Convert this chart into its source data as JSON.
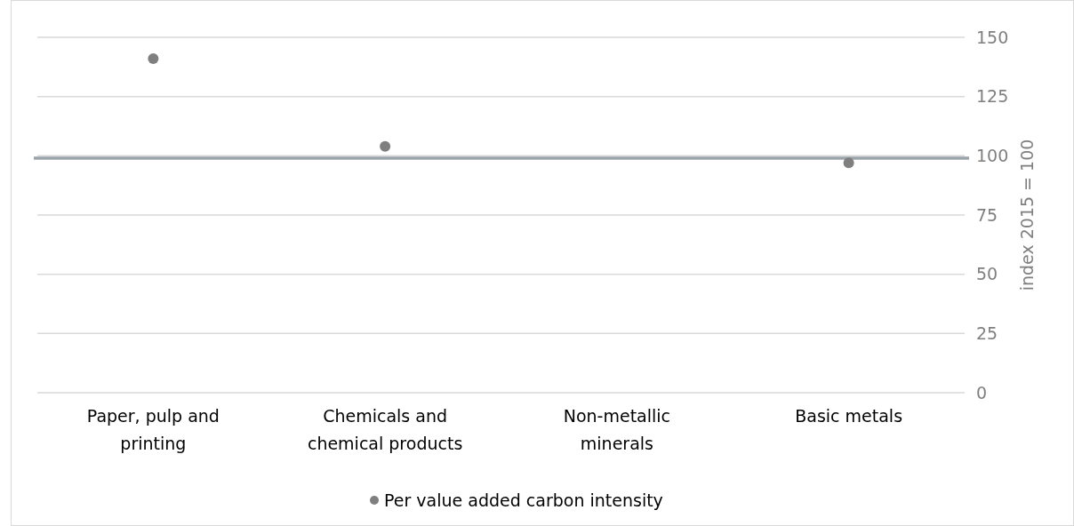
{
  "chart_data": {
    "type": "scatter",
    "ylabel": "index 2015 = 100",
    "categories": [
      "Paper, pulp and printing",
      "Chemicals and chemical products",
      "Non-metallic minerals",
      "Basic metals"
    ],
    "series": [
      {
        "name": "Per value added carbon intensity",
        "color": "#7f7f7f",
        "values": [
          141,
          104,
          null,
          97
        ]
      }
    ],
    "ylim": [
      0,
      150
    ],
    "yticks": [
      0,
      25,
      50,
      75,
      100,
      125,
      150
    ],
    "grid": "y",
    "legend": "bottom",
    "marker": "circle",
    "ref_lines": [
      {
        "axis": "y",
        "value": 99,
        "color": "#9aa5ab"
      }
    ]
  }
}
